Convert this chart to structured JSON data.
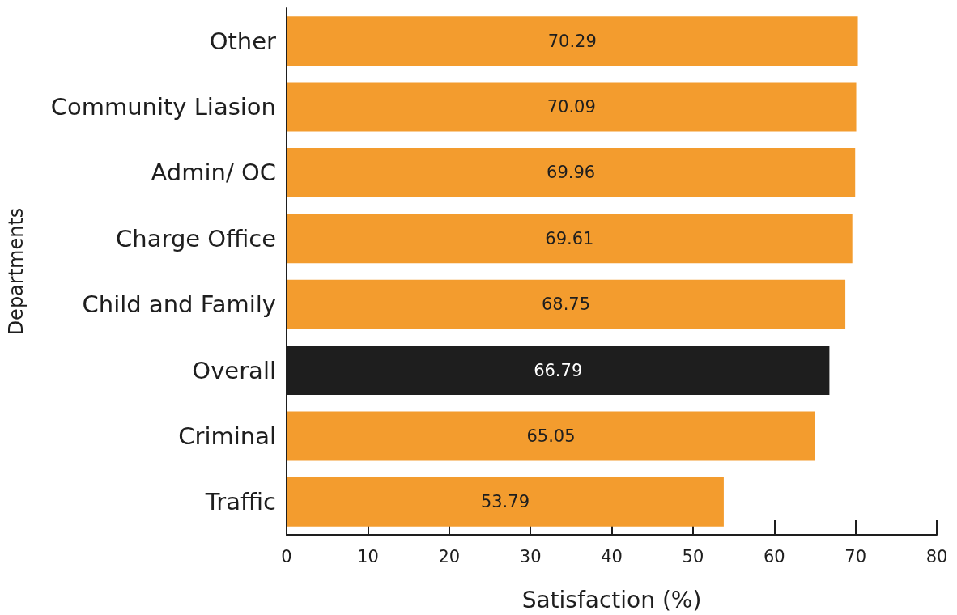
{
  "chart_data": {
    "type": "bar",
    "orientation": "horizontal",
    "xlabel": "Satisfaction (%)",
    "ylabel": "Departments",
    "categories": [
      "Other",
      "Community Liasion",
      "Admin/ OC",
      "Charge Office",
      "Child and Family",
      "Overall",
      "Criminal",
      "Traffic"
    ],
    "values": [
      70.29,
      70.09,
      69.96,
      69.61,
      68.75,
      66.79,
      65.05,
      53.79
    ],
    "colors": [
      "#f39c2e",
      "#f39c2e",
      "#f39c2e",
      "#f39c2e",
      "#f39c2e",
      "#1e1e1e",
      "#f39c2e",
      "#f39c2e"
    ],
    "xlim": [
      0,
      80
    ],
    "xticks": [
      0,
      10,
      20,
      30,
      40,
      50,
      60,
      70,
      80
    ],
    "data_labels": true,
    "grid": false
  }
}
